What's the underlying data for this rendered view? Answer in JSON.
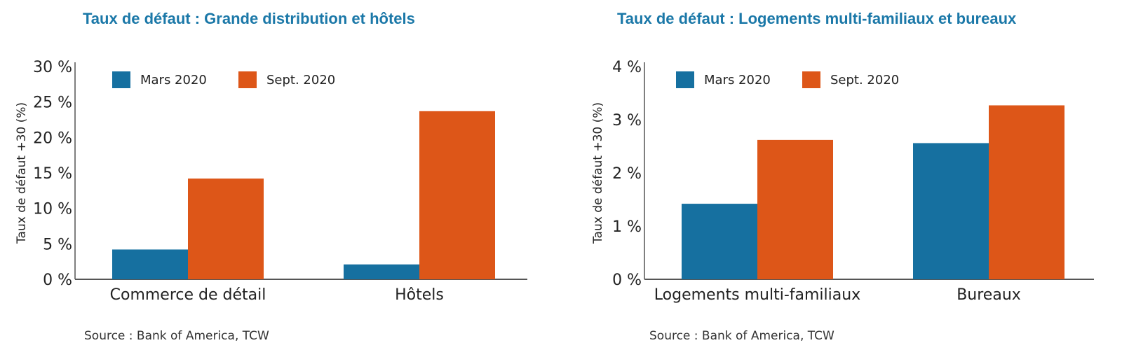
{
  "colors": {
    "title": "#1b78a8",
    "mars": "#1670a0",
    "sept": "#dd5618",
    "axis": "#555555"
  },
  "chart_data": [
    {
      "type": "bar",
      "title": "Taux de défaut : Grande distribution et hôtels",
      "ylabel": "Taux de défaut +30 (%)",
      "xlabel": "",
      "categories": [
        "Commerce de détail",
        "Hôtels"
      ],
      "series": [
        {
          "name": "Mars 2020",
          "values": [
            4.2,
            2.1
          ]
        },
        {
          "name": "Sept. 2020",
          "values": [
            14.2,
            23.7
          ]
        }
      ],
      "ylim": [
        0,
        30
      ],
      "yticks": [
        0,
        5,
        10,
        15,
        20,
        25,
        30
      ],
      "ytick_labels": [
        "0 %",
        "5 %",
        "10 %",
        "15 %",
        "20 %",
        "25 %",
        "30 %"
      ],
      "grid": false,
      "legend_position": "top-left",
      "source": "Source : Bank of America, TCW"
    },
    {
      "type": "bar",
      "title": "Taux de défaut : Logements multi-familiaux et bureaux",
      "ylabel": "Taux de défaut +30 (%)",
      "xlabel": "",
      "categories": [
        "Logements multi-familiaux",
        "Bureaux"
      ],
      "series": [
        {
          "name": "Mars 2020",
          "values": [
            1.42,
            2.56
          ]
        },
        {
          "name": "Sept. 2020",
          "values": [
            2.62,
            3.27
          ]
        }
      ],
      "ylim": [
        0,
        4
      ],
      "yticks": [
        0,
        1,
        2,
        3,
        4
      ],
      "ytick_labels": [
        "0 %",
        "1 %",
        "2 %",
        "3 %",
        "4 %"
      ],
      "grid": false,
      "legend_position": "top-left",
      "source": "Source : Bank of America, TCW"
    }
  ]
}
